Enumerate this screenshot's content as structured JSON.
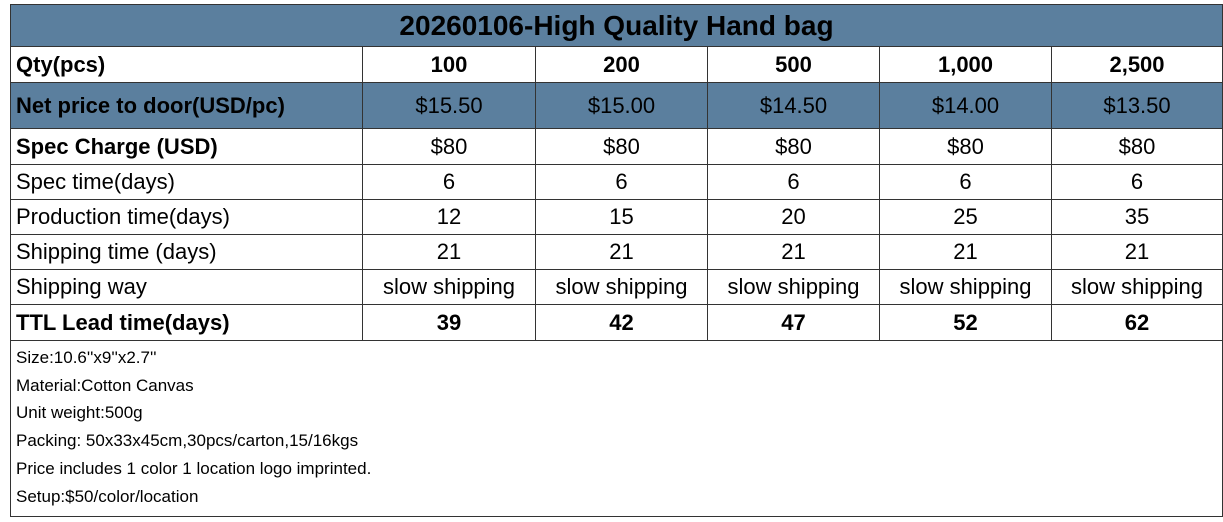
{
  "title": "20260106-High Quality Hand bag",
  "table": {
    "rows": [
      {
        "label": "Qty(pcs)",
        "values": [
          "100",
          "200",
          "500",
          "1,000",
          "2,500"
        ]
      },
      {
        "label": "Net price to door(USD/pc)",
        "values": [
          "$15.50",
          "$15.00",
          "$14.50",
          "$14.00",
          "$13.50"
        ]
      },
      {
        "label": "Spec Charge (USD)",
        "values": [
          "$80",
          "$80",
          "$80",
          "$80",
          "$80"
        ]
      },
      {
        "label": "Spec time(days)",
        "values": [
          "6",
          "6",
          "6",
          "6",
          "6"
        ]
      },
      {
        "label": "Production time(days)",
        "values": [
          "12",
          "15",
          "20",
          "25",
          "35"
        ]
      },
      {
        "label": "Shipping time (days)",
        "values": [
          "21",
          "21",
          "21",
          "21",
          "21"
        ]
      },
      {
        "label": "Shipping way",
        "values": [
          "slow shipping",
          "slow shipping",
          "slow shipping",
          "slow shipping",
          "slow shipping"
        ]
      },
      {
        "label": "TTL Lead time(days)",
        "values": [
          "39",
          "42",
          "47",
          "52",
          "62"
        ]
      }
    ]
  },
  "notes": [
    "Size:10.6''x9''x2.7''",
    "Material:Cotton Canvas",
    "Unit weight:500g",
    "Packing: 50x33x45cm,30pcs/carton,15/16kgs",
    "Price includes 1 color 1 location logo imprinted.",
    "Setup:$50/color/location"
  ]
}
